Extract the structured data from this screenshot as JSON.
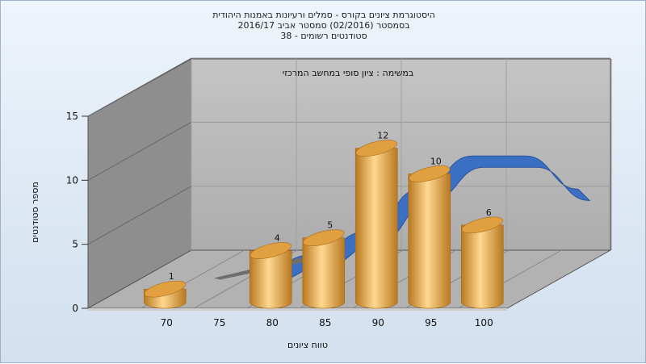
{
  "chart_data": {
    "type": "bar",
    "title_lines": [
      "היסטוגרמת ציונים בקורס - סמלים ורעיונות באמנות היהודית",
      "בסמסטר  (02/2016)  סמסטר אביב 2016/17",
      "סטודנטים רשומים - 38"
    ],
    "subtitle": "במשימה : ציון סופי במחשב המרכזי",
    "xlabel": "טווח ציונים",
    "ylabel": "מספר סטודנטים",
    "ylim": [
      0,
      15
    ],
    "yticks": [
      0,
      5,
      10,
      15
    ],
    "xticks": [
      "70",
      "75",
      "80",
      "85",
      "90",
      "95",
      "100"
    ],
    "categories": [
      "70",
      "75",
      "80",
      "85",
      "90",
      "95",
      "100"
    ],
    "values": [
      1,
      0,
      4,
      5,
      12,
      10,
      6
    ],
    "data_labels": [
      "1",
      "",
      "4",
      "5",
      "12",
      "10",
      "6"
    ],
    "curve": {
      "x": [
        77.5,
        82.5,
        87.5,
        92.5,
        97.5,
        102.5,
        107.5
      ],
      "y": [
        0.5,
        1.7,
        3.5,
        6.8,
        9.4,
        9.4,
        6.8
      ]
    },
    "grid": true,
    "colors": {
      "bar": "#e0a040",
      "bar_light": "#ffd890",
      "bar_dark": "#b87820",
      "curve": "#3a6fc4",
      "back_wall": "#b9b9b9",
      "side_wall": "#8e8e8e",
      "floor": "#b0b0b0"
    }
  }
}
